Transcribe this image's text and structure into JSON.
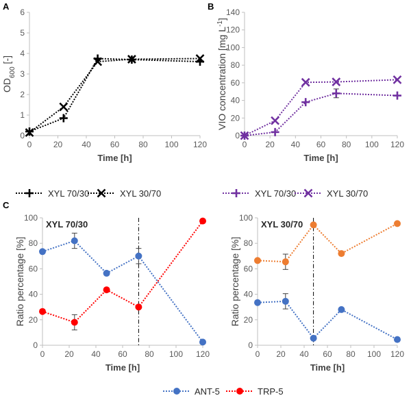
{
  "panel_labels": {
    "a": "A",
    "b": "B",
    "c": "C"
  },
  "colors": {
    "black": "#000000",
    "purple": "#7030a0",
    "blue": "#4472c4",
    "red": "#ff0000",
    "orange": "#ed7d31",
    "axis": "#bfbfbf"
  },
  "chart_data": [
    {
      "id": "A",
      "type": "line",
      "xlabel": "Time [h]",
      "ylabel": "OD600 [-]",
      "ylabel_main": "OD",
      "ylabel_sub": "600",
      "ylabel_rest": " [-]",
      "xlim": [
        0,
        120
      ],
      "ylim": [
        0,
        6
      ],
      "xticks": [
        0,
        20,
        40,
        60,
        80,
        100,
        120
      ],
      "yticks": [
        0,
        1,
        2,
        3,
        4,
        5,
        6
      ],
      "series": [
        {
          "name": "XYL 70/30",
          "marker": "plus",
          "color": "#000000",
          "x": [
            0,
            24,
            48,
            72,
            120
          ],
          "y": [
            0.2,
            0.85,
            3.75,
            3.7,
            3.6
          ]
        },
        {
          "name": "XYL 30/70",
          "marker": "x",
          "color": "#000000",
          "x": [
            0,
            24,
            48,
            72,
            120
          ],
          "y": [
            0.15,
            1.4,
            3.6,
            3.72,
            3.75
          ]
        }
      ]
    },
    {
      "id": "B",
      "type": "line",
      "xlabel": "Time [h]",
      "ylabel": "VIO concentration [mg L-1]",
      "ylabel_main": "VIO concentration [mg L",
      "ylabel_sup": "-1",
      "ylabel_rest": "]",
      "xlim": [
        0,
        120
      ],
      "ylim": [
        0,
        140
      ],
      "xticks": [
        0,
        20,
        40,
        60,
        80,
        100,
        120
      ],
      "yticks": [
        0,
        20,
        40,
        60,
        80,
        100,
        120,
        140
      ],
      "series": [
        {
          "name": "XYL 70/30",
          "marker": "plus",
          "color": "#7030a0",
          "x": [
            0,
            24,
            48,
            72,
            120
          ],
          "y": [
            0,
            4,
            38,
            48,
            45.5
          ],
          "err": [
            0,
            0,
            0,
            5,
            0
          ]
        },
        {
          "name": "XYL 30/70",
          "marker": "x",
          "color": "#7030a0",
          "x": [
            0,
            24,
            48,
            72,
            120
          ],
          "y": [
            0,
            17,
            60.5,
            61,
            63.5
          ]
        }
      ]
    },
    {
      "id": "C1",
      "type": "scatter",
      "inset_label": "XYL 70/30",
      "xlabel": "Time [h]",
      "ylabel": "Ratio percentage [%]",
      "xlim": [
        0,
        120
      ],
      "ylim": [
        0,
        100
      ],
      "xticks": [
        0,
        20,
        40,
        60,
        80,
        100,
        120
      ],
      "yticks": [
        0,
        20,
        40,
        60,
        80,
        100
      ],
      "vline_x": 72,
      "series": [
        {
          "name": "ANT-5",
          "marker": "circle",
          "color": "#4472c4",
          "x": [
            0,
            24,
            48,
            72,
            120
          ],
          "y": [
            73.5,
            82,
            56.5,
            70,
            2.5
          ],
          "err": [
            0,
            6,
            0,
            6,
            0
          ]
        },
        {
          "name": "TRP-5",
          "marker": "circle",
          "color": "#ff0000",
          "x": [
            0,
            24,
            48,
            72,
            120
          ],
          "y": [
            26.5,
            18,
            43.5,
            30,
            97.5
          ],
          "err": [
            0,
            6,
            0,
            0,
            0
          ]
        }
      ]
    },
    {
      "id": "C2",
      "type": "scatter",
      "inset_label": "XYL 30/70",
      "xlabel": "Time [h]",
      "ylabel": "Ratio percentage [%]",
      "xlim": [
        0,
        120
      ],
      "ylim": [
        0,
        100
      ],
      "xticks": [
        0,
        20,
        40,
        60,
        80,
        100,
        120
      ],
      "yticks": [
        0,
        20,
        40,
        60,
        80,
        100
      ],
      "vline_x": 48,
      "series": [
        {
          "name": "ANT-5",
          "marker": "circle",
          "color": "#4472c4",
          "x": [
            0,
            24,
            48,
            72,
            120
          ],
          "y": [
            33.5,
            34.5,
            5.5,
            28,
            4.5
          ],
          "err": [
            0,
            6,
            0,
            0,
            0
          ]
        },
        {
          "name": "TRP-5",
          "marker": "circle",
          "color": "#ed7d31",
          "x": [
            0,
            24,
            48,
            72,
            120
          ],
          "y": [
            66.5,
            65.5,
            94.5,
            72,
            95.5
          ],
          "err": [
            0,
            6,
            0,
            0,
            0
          ]
        }
      ]
    }
  ],
  "legends": {
    "a": [
      {
        "label": "XYL 70/30",
        "marker": "plus"
      },
      {
        "label": "XYL 30/70",
        "marker": "x"
      }
    ],
    "b": [
      {
        "label": "XYL 70/30",
        "marker": "plus"
      },
      {
        "label": "XYL 30/70",
        "marker": "x"
      }
    ],
    "c": [
      {
        "label": "ANT-5",
        "color": "#4472c4"
      },
      {
        "label": "TRP-5",
        "color": "#ff0000"
      }
    ]
  }
}
